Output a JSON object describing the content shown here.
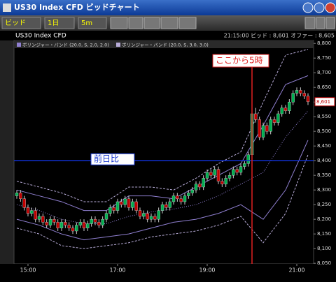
{
  "window": {
    "title": "US30 Index CFD ビッドチャート"
  },
  "toolbar": {
    "price_type": "ビッド",
    "period": "1日",
    "interval": "5m"
  },
  "info": {
    "symbol": "US30 Index CFD",
    "quote": "21:15:00 ビッド : 8,601 オファー : 8,605"
  },
  "chart_data": {
    "type": "candlestick",
    "categories": [
      null,
      null,
      null,
      "15:00",
      null,
      null,
      null,
      null,
      null,
      null,
      null,
      null,
      null,
      null,
      null,
      null,
      null,
      null,
      null,
      null,
      null,
      null,
      null,
      null,
      null,
      null,
      null,
      "17:00",
      null,
      null,
      null,
      null,
      null,
      null,
      null,
      null,
      null,
      null,
      null,
      null,
      null,
      null,
      null,
      null,
      null,
      null,
      null,
      null,
      null,
      null,
      null,
      "19:00",
      null,
      null,
      null,
      null,
      null,
      null,
      null,
      null,
      null,
      null,
      null,
      null,
      null,
      null,
      null,
      null,
      null,
      null,
      null,
      null,
      null,
      null,
      null,
      "21:00",
      null,
      null,
      null
    ],
    "open": [
      8280,
      8290,
      8270,
      8240,
      8220,
      8230,
      8200,
      8210,
      8190,
      8180,
      8200,
      8190,
      8170,
      8190,
      8180,
      8170,
      8160,
      8180,
      8190,
      8170,
      8185,
      8200,
      8190,
      8180,
      8200,
      8220,
      8240,
      8230,
      8260,
      8250,
      8270,
      8240,
      8260,
      8230,
      8210,
      8220,
      8200,
      8210,
      8200,
      8230,
      8250,
      8240,
      8260,
      8280,
      8270,
      8260,
      8280,
      8290,
      8300,
      8320,
      8310,
      8340,
      8360,
      8350,
      8370,
      8330,
      8320,
      8340,
      8350,
      8370,
      8360,
      8380,
      8390,
      8420,
      8560,
      8540,
      8480,
      8520,
      8500,
      8540,
      8530,
      8560,
      8580,
      8570,
      8600,
      8630,
      8640,
      8630,
      8620
    ],
    "high": [
      8300,
      8300,
      8280,
      8250,
      8240,
      8240,
      8220,
      8220,
      8200,
      8210,
      8210,
      8200,
      8200,
      8200,
      8190,
      8180,
      8190,
      8200,
      8200,
      8195,
      8210,
      8210,
      8200,
      8210,
      8230,
      8250,
      8250,
      8270,
      8270,
      8280,
      8280,
      8270,
      8270,
      8240,
      8230,
      8230,
      8220,
      8220,
      8240,
      8260,
      8260,
      8270,
      8290,
      8290,
      8280,
      8290,
      8300,
      8310,
      8330,
      8330,
      8350,
      8370,
      8370,
      8380,
      8380,
      8340,
      8350,
      8360,
      8380,
      8380,
      8390,
      8400,
      8430,
      8570,
      8580,
      8550,
      8530,
      8530,
      8550,
      8550,
      8570,
      8590,
      8590,
      8610,
      8640,
      8650,
      8650,
      8640,
      8630
    ],
    "low": [
      8270,
      8260,
      8230,
      8210,
      8210,
      8190,
      8190,
      8180,
      8170,
      8170,
      8180,
      8160,
      8160,
      8170,
      8160,
      8150,
      8150,
      8170,
      8160,
      8160,
      8175,
      8180,
      8170,
      8170,
      8190,
      8210,
      8220,
      8220,
      8240,
      8240,
      8230,
      8230,
      8220,
      8200,
      8200,
      8190,
      8190,
      8190,
      8190,
      8220,
      8230,
      8230,
      8250,
      8260,
      8250,
      8250,
      8270,
      8280,
      8290,
      8300,
      8300,
      8330,
      8340,
      8340,
      8320,
      8310,
      8310,
      8330,
      8340,
      8350,
      8350,
      8370,
      8380,
      8410,
      8530,
      8470,
      8470,
      8490,
      8490,
      8520,
      8520,
      8550,
      8560,
      8560,
      8590,
      8620,
      8620,
      8610,
      8590
    ],
    "close": [
      8290,
      8270,
      8240,
      8220,
      8230,
      8200,
      8210,
      8190,
      8180,
      8200,
      8190,
      8170,
      8190,
      8180,
      8170,
      8160,
      8180,
      8190,
      8170,
      8185,
      8200,
      8190,
      8180,
      8200,
      8220,
      8240,
      8230,
      8260,
      8250,
      8270,
      8240,
      8260,
      8230,
      8210,
      8220,
      8200,
      8210,
      8200,
      8230,
      8250,
      8240,
      8260,
      8280,
      8270,
      8260,
      8280,
      8290,
      8300,
      8320,
      8310,
      8340,
      8360,
      8350,
      8370,
      8330,
      8320,
      8340,
      8350,
      8370,
      8360,
      8380,
      8390,
      8420,
      8560,
      8540,
      8480,
      8520,
      8500,
      8540,
      8530,
      8560,
      8580,
      8570,
      8600,
      8630,
      8640,
      8630,
      8620,
      8601
    ],
    "up_color": "#00b050",
    "down_color": "#c00000",
    "last_price": {
      "value": 8601,
      "label": "8,601"
    },
    "bands_x": [
      0,
      6,
      12,
      18,
      24,
      30,
      36,
      42,
      48,
      54,
      60,
      66,
      72,
      78
    ],
    "bands": [
      {
        "name": "ボリンジャー・バンド (20.0, S, 2.0, 2.0)",
        "color": "#8f7fd0",
        "mid": [
          8250,
          8230,
          8200,
          8185,
          8185,
          8210,
          8225,
          8235,
          8250,
          8280,
          8320,
          8360,
          8480,
          8570
        ],
        "upper": [
          8300,
          8280,
          8260,
          8230,
          8230,
          8280,
          8280,
          8270,
          8310,
          8350,
          8390,
          8520,
          8660,
          8690
        ],
        "lower": [
          8200,
          8180,
          8150,
          8130,
          8140,
          8150,
          8170,
          8190,
          8200,
          8220,
          8250,
          8200,
          8300,
          8470
        ]
      },
      {
        "name": "ボリンジャー・バンド (20.0, S, 3.0, 3.0)",
        "color": "#b8acd8",
        "upper": [
          8330,
          8310,
          8290,
          8260,
          8260,
          8310,
          8310,
          8300,
          8340,
          8390,
          8430,
          8600,
          8760,
          8780
        ],
        "lower": [
          8170,
          8150,
          8110,
          8100,
          8110,
          8120,
          8140,
          8150,
          8160,
          8180,
          8210,
          8120,
          8220,
          8420
        ]
      }
    ],
    "hline": {
      "value": 8400,
      "label": "前日比",
      "color": "#1030d0"
    },
    "vline": {
      "x": 63,
      "label": "ここから5時",
      "color": "#e02020"
    },
    "ylim": [
      8048,
      8810
    ],
    "yticks": [
      {
        "value": 8050,
        "label": "8,050"
      },
      {
        "value": 8100,
        "label": "8,100"
      },
      {
        "value": 8150,
        "label": "8,150"
      },
      {
        "value": 8200,
        "label": "8,200"
      },
      {
        "value": 8250,
        "label": "8,250"
      },
      {
        "value": 8300,
        "label": "8,300"
      },
      {
        "value": 8350,
        "label": "8,350"
      },
      {
        "value": 8400,
        "label": "8,400"
      },
      {
        "value": 8450,
        "label": "8,450"
      },
      {
        "value": 8500,
        "label": "8,500"
      },
      {
        "value": 8550,
        "label": "8,550"
      },
      {
        "value": 8600,
        "label": "8,600"
      },
      {
        "value": 8650,
        "label": "8,650"
      },
      {
        "value": 8700,
        "label": "8,700"
      },
      {
        "value": 8750,
        "label": "8,750"
      },
      {
        "value": 8800,
        "label": "8,800"
      }
    ]
  }
}
